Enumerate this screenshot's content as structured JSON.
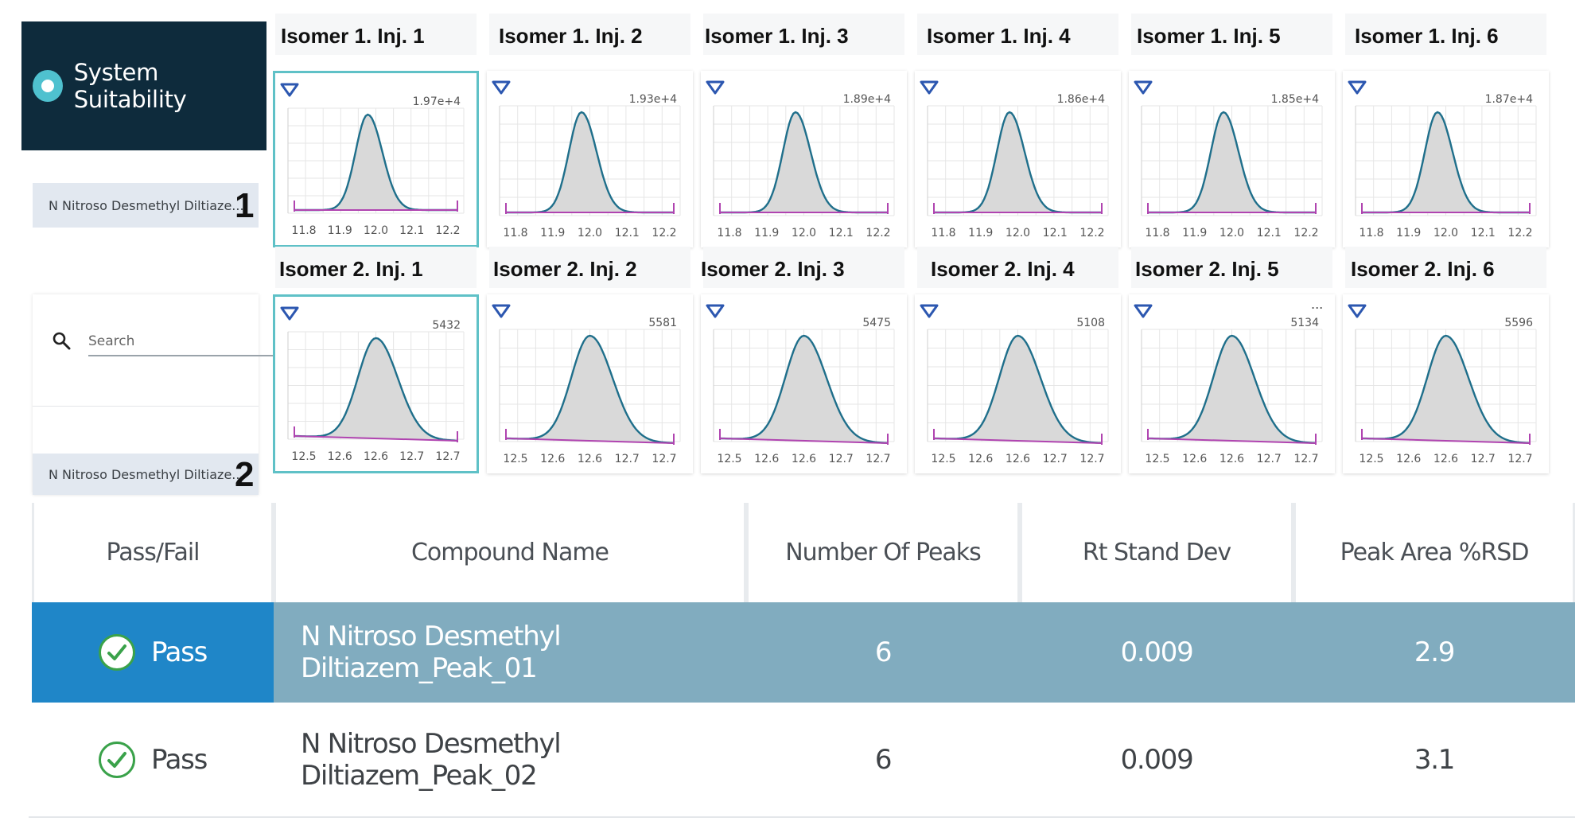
{
  "app": {
    "title": "System Suitability"
  },
  "compounds": [
    {
      "label": "N Nitroso Desmethyl Diltiaze...",
      "marker": "1"
    },
    {
      "label": "N Nitroso Desmethyl Diltiaze...",
      "marker": "2"
    }
  ],
  "search": {
    "placeholder": "Search"
  },
  "chart_rows": [
    {
      "titles": [
        "Isomer 1. Inj. 1",
        "Isomer 1. Inj. 2",
        "Isomer 1. Inj. 3",
        "Isomer 1. Inj. 4",
        "Isomer 1. Inj. 5",
        "Isomer 1. Inj. 6"
      ],
      "ymax_labels": [
        "1.97e+4",
        "1.93e+4",
        "1.89e+4",
        "1.86e+4",
        "1.85e+4",
        "1.87e+4"
      ],
      "x_ticks": [
        "11.8",
        "11.9",
        "12.0",
        "12.1",
        "12.2"
      ],
      "corner_marks": [
        "",
        "",
        "",
        "",
        "",
        ""
      ]
    },
    {
      "titles": [
        "Isomer 2. Inj. 1",
        "Isomer 2. Inj. 2",
        "Isomer 2. Inj. 3",
        "Isomer 2. Inj. 4",
        "Isomer 2. Inj. 5",
        "Isomer 2. Inj. 6"
      ],
      "ymax_labels": [
        "5432",
        "5581",
        "5475",
        "5108",
        "5134",
        "5596"
      ],
      "x_ticks": [
        "12.5",
        "12.6",
        "12.6",
        "12.7",
        "12.7"
      ],
      "corner_marks": [
        "",
        "",
        "",
        "",
        "...",
        ""
      ]
    }
  ],
  "table": {
    "headers": [
      "Pass/Fail",
      "Compound Name",
      "Number Of Peaks",
      "Rt Stand Dev",
      "Peak Area %RSD"
    ],
    "rows": [
      {
        "status": "Pass",
        "compound": "N Nitroso Desmethyl Diltiazem_Peak_01",
        "peaks": "6",
        "rt_sd": "0.009",
        "area_rsd": "2.9",
        "selected": true
      },
      {
        "status": "Pass",
        "compound": "N Nitroso Desmethyl Diltiazem_Peak_02",
        "peaks": "6",
        "rt_sd": "0.009",
        "area_rsd": "3.1",
        "selected": false
      }
    ]
  },
  "colors": {
    "header_bg": "#0e2b3c",
    "accent": "#5fc1c7",
    "peak_line": "#1f6f8b",
    "baseline": "#b044b0",
    "selected_row": "#81acbf",
    "pass_cell": "#1f86c8",
    "pass_check": "#3aa24a"
  }
}
